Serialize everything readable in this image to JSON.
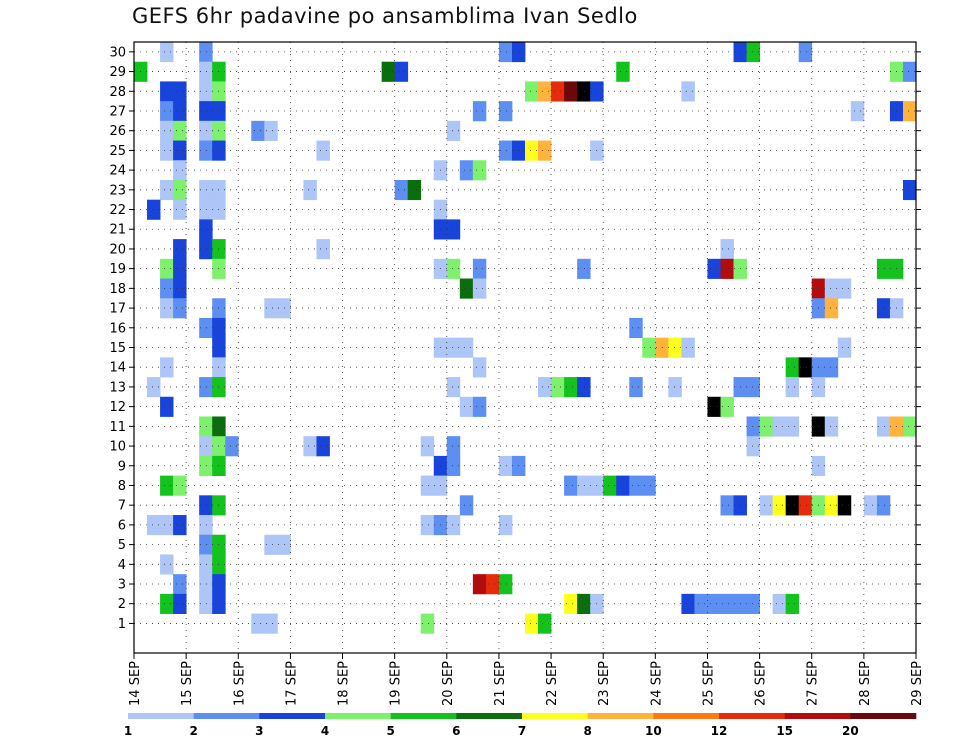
{
  "chart_data": {
    "type": "heatmap",
    "title": "GEFS 6hr padavine po ansamblima Ivan Sedlo",
    "xlabel": "",
    "ylabel": "",
    "x_tick_labels": [
      "14 SEP",
      "15 SEP",
      "16 SEP",
      "17 SEP",
      "18 SEP",
      "19 SEP",
      "20 SEP",
      "21 SEP",
      "22 SEP",
      "23 SEP",
      "24 SEP",
      "25 SEP",
      "26 SEP",
      "27 SEP",
      "28 SEP",
      "29 SEP"
    ],
    "y_tick_labels": [
      "1",
      "2",
      "3",
      "4",
      "5",
      "6",
      "7",
      "8",
      "9",
      "10",
      "11",
      "12",
      "13",
      "14",
      "15",
      "16",
      "17",
      "18",
      "19",
      "20",
      "21",
      "22",
      "23",
      "24",
      "25",
      "26",
      "27",
      "28",
      "29",
      "30"
    ],
    "n_time_steps": 60,
    "n_members": 31,
    "grid": true,
    "legend": {
      "position": "bottom",
      "levels": [
        "1",
        "2",
        "3",
        "4",
        "5",
        "6",
        "7",
        "8",
        "10",
        "12",
        "15",
        "20"
      ],
      "colors": [
        "#adc5f7",
        "#5d8ff2",
        "#1844dc",
        "#7df06c",
        "#14c21e",
        "#0b6e0e",
        "#ffff1e",
        "#ffb23c",
        "#ff7a10",
        "#e62a0c",
        "#b40c0c",
        "#6e0808"
      ]
    },
    "cells": [
      [
        3,
        30,
        1
      ],
      [
        6,
        30,
        2
      ],
      [
        29,
        30,
        2
      ],
      [
        30,
        30,
        3
      ],
      [
        47,
        30,
        3
      ],
      [
        48,
        30,
        5
      ],
      [
        52,
        30,
        2
      ],
      [
        1,
        29,
        5
      ],
      [
        6,
        29,
        1
      ],
      [
        7,
        29,
        5
      ],
      [
        20,
        29,
        6
      ],
      [
        21,
        29,
        3
      ],
      [
        38,
        29,
        5
      ],
      [
        59,
        29,
        4
      ],
      [
        60,
        29,
        2
      ],
      [
        3,
        28,
        3
      ],
      [
        4,
        28,
        3
      ],
      [
        6,
        28,
        1
      ],
      [
        7,
        28,
        4
      ],
      [
        31,
        28,
        4
      ],
      [
        32,
        28,
        8
      ],
      [
        33,
        28,
        10
      ],
      [
        34,
        28,
        12
      ],
      [
        35,
        28,
        13
      ],
      [
        36,
        28,
        3
      ],
      [
        43,
        28,
        1
      ],
      [
        3,
        27,
        2
      ],
      [
        4,
        27,
        3
      ],
      [
        6,
        27,
        3
      ],
      [
        7,
        27,
        3
      ],
      [
        27,
        27,
        2
      ],
      [
        29,
        27,
        2
      ],
      [
        56,
        27,
        1
      ],
      [
        59,
        27,
        3
      ],
      [
        60,
        27,
        8
      ],
      [
        3,
        26,
        1
      ],
      [
        4,
        26,
        4
      ],
      [
        6,
        26,
        1
      ],
      [
        7,
        26,
        4
      ],
      [
        10,
        26,
        2
      ],
      [
        11,
        26,
        1
      ],
      [
        25,
        26,
        1
      ],
      [
        3,
        25,
        1
      ],
      [
        4,
        25,
        3
      ],
      [
        6,
        25,
        2
      ],
      [
        7,
        25,
        3
      ],
      [
        15,
        25,
        1
      ],
      [
        29,
        25,
        2
      ],
      [
        30,
        25,
        3
      ],
      [
        31,
        25,
        7
      ],
      [
        32,
        25,
        8
      ],
      [
        36,
        25,
        1
      ],
      [
        4,
        24,
        1
      ],
      [
        24,
        24,
        1
      ],
      [
        26,
        24,
        2
      ],
      [
        27,
        24,
        4
      ],
      [
        3,
        23,
        1
      ],
      [
        4,
        23,
        4
      ],
      [
        6,
        23,
        1
      ],
      [
        7,
        23,
        1
      ],
      [
        14,
        23,
        1
      ],
      [
        21,
        23,
        2
      ],
      [
        22,
        23,
        6
      ],
      [
        60,
        23,
        3
      ],
      [
        2,
        22,
        3
      ],
      [
        4,
        22,
        1
      ],
      [
        6,
        22,
        1
      ],
      [
        7,
        22,
        1
      ],
      [
        24,
        22,
        1
      ],
      [
        6,
        21,
        3
      ],
      [
        24,
        21,
        3
      ],
      [
        25,
        21,
        3
      ],
      [
        4,
        20,
        3
      ],
      [
        6,
        20,
        3
      ],
      [
        7,
        20,
        5
      ],
      [
        15,
        20,
        1
      ],
      [
        46,
        20,
        1
      ],
      [
        3,
        19,
        4
      ],
      [
        4,
        19,
        3
      ],
      [
        7,
        19,
        4
      ],
      [
        24,
        19,
        1
      ],
      [
        25,
        19,
        4
      ],
      [
        27,
        19,
        2
      ],
      [
        35,
        19,
        2
      ],
      [
        45,
        19,
        3
      ],
      [
        46,
        19,
        11
      ],
      [
        47,
        19,
        4
      ],
      [
        58,
        19,
        5
      ],
      [
        59,
        19,
        5
      ],
      [
        3,
        18,
        2
      ],
      [
        4,
        18,
        3
      ],
      [
        26,
        18,
        6
      ],
      [
        27,
        18,
        1
      ],
      [
        53,
        18,
        11
      ],
      [
        54,
        18,
        1
      ],
      [
        55,
        18,
        1
      ],
      [
        3,
        17,
        1
      ],
      [
        4,
        17,
        2
      ],
      [
        7,
        17,
        2
      ],
      [
        11,
        17,
        1
      ],
      [
        12,
        17,
        1
      ],
      [
        53,
        17,
        2
      ],
      [
        54,
        17,
        8
      ],
      [
        58,
        17,
        3
      ],
      [
        59,
        17,
        1
      ],
      [
        6,
        16,
        2
      ],
      [
        7,
        16,
        3
      ],
      [
        39,
        16,
        2
      ],
      [
        7,
        15,
        3
      ],
      [
        24,
        15,
        1
      ],
      [
        25,
        15,
        1
      ],
      [
        26,
        15,
        1
      ],
      [
        40,
        15,
        4
      ],
      [
        41,
        15,
        8
      ],
      [
        42,
        15,
        7
      ],
      [
        43,
        15,
        1
      ],
      [
        55,
        15,
        1
      ],
      [
        3,
        14,
        1
      ],
      [
        7,
        14,
        1
      ],
      [
        27,
        14,
        1
      ],
      [
        51,
        14,
        5
      ],
      [
        52,
        14,
        13
      ],
      [
        53,
        14,
        2
      ],
      [
        54,
        14,
        2
      ],
      [
        2,
        13,
        1
      ],
      [
        6,
        13,
        2
      ],
      [
        7,
        13,
        5
      ],
      [
        25,
        13,
        1
      ],
      [
        32,
        13,
        1
      ],
      [
        33,
        13,
        4
      ],
      [
        34,
        13,
        5
      ],
      [
        35,
        13,
        3
      ],
      [
        39,
        13,
        2
      ],
      [
        42,
        13,
        1
      ],
      [
        47,
        13,
        2
      ],
      [
        48,
        13,
        2
      ],
      [
        51,
        13,
        1
      ],
      [
        53,
        13,
        1
      ],
      [
        3,
        12,
        3
      ],
      [
        26,
        12,
        1
      ],
      [
        27,
        12,
        2
      ],
      [
        45,
        12,
        14
      ],
      [
        46,
        12,
        4
      ],
      [
        6,
        11,
        4
      ],
      [
        7,
        11,
        6
      ],
      [
        48,
        11,
        2
      ],
      [
        49,
        11,
        4
      ],
      [
        50,
        11,
        1
      ],
      [
        51,
        11,
        1
      ],
      [
        53,
        11,
        13
      ],
      [
        54,
        11,
        1
      ],
      [
        58,
        11,
        1
      ],
      [
        59,
        11,
        8
      ],
      [
        60,
        11,
        4
      ],
      [
        6,
        10,
        1
      ],
      [
        7,
        10,
        4
      ],
      [
        8,
        10,
        2
      ],
      [
        14,
        10,
        1
      ],
      [
        15,
        10,
        3
      ],
      [
        23,
        10,
        1
      ],
      [
        25,
        10,
        2
      ],
      [
        48,
        10,
        1
      ],
      [
        6,
        9,
        4
      ],
      [
        7,
        9,
        5
      ],
      [
        24,
        9,
        3
      ],
      [
        25,
        9,
        2
      ],
      [
        29,
        9,
        1
      ],
      [
        30,
        9,
        2
      ],
      [
        53,
        9,
        1
      ],
      [
        3,
        8,
        5
      ],
      [
        4,
        8,
        4
      ],
      [
        23,
        8,
        1
      ],
      [
        24,
        8,
        1
      ],
      [
        34,
        8,
        2
      ],
      [
        35,
        8,
        1
      ],
      [
        36,
        8,
        1
      ],
      [
        37,
        8,
        5
      ],
      [
        38,
        8,
        3
      ],
      [
        39,
        8,
        2
      ],
      [
        40,
        8,
        2
      ],
      [
        6,
        7,
        3
      ],
      [
        7,
        7,
        5
      ],
      [
        26,
        7,
        2
      ],
      [
        46,
        7,
        2
      ],
      [
        47,
        7,
        3
      ],
      [
        49,
        7,
        1
      ],
      [
        50,
        7,
        7
      ],
      [
        51,
        7,
        13
      ],
      [
        52,
        7,
        10
      ],
      [
        53,
        7,
        4
      ],
      [
        54,
        7,
        7
      ],
      [
        55,
        7,
        13
      ],
      [
        57,
        7,
        1
      ],
      [
        58,
        7,
        2
      ],
      [
        2,
        6,
        1
      ],
      [
        3,
        6,
        1
      ],
      [
        4,
        6,
        3
      ],
      [
        6,
        6,
        1
      ],
      [
        23,
        6,
        1
      ],
      [
        24,
        6,
        2
      ],
      [
        25,
        6,
        1
      ],
      [
        29,
        6,
        1
      ],
      [
        6,
        5,
        2
      ],
      [
        7,
        5,
        5
      ],
      [
        11,
        5,
        1
      ],
      [
        12,
        5,
        1
      ],
      [
        3,
        4,
        1
      ],
      [
        6,
        4,
        1
      ],
      [
        7,
        4,
        5
      ],
      [
        4,
        3,
        2
      ],
      [
        6,
        3,
        1
      ],
      [
        7,
        3,
        3
      ],
      [
        27,
        3,
        11
      ],
      [
        28,
        3,
        10
      ],
      [
        29,
        3,
        5
      ],
      [
        3,
        2,
        5
      ],
      [
        4,
        2,
        3
      ],
      [
        6,
        2,
        1
      ],
      [
        7,
        2,
        3
      ],
      [
        34,
        2,
        7
      ],
      [
        35,
        2,
        6
      ],
      [
        36,
        2,
        1
      ],
      [
        43,
        2,
        3
      ],
      [
        44,
        2,
        2
      ],
      [
        45,
        2,
        2
      ],
      [
        46,
        2,
        2
      ],
      [
        47,
        2,
        2
      ],
      [
        48,
        2,
        2
      ],
      [
        50,
        2,
        1
      ],
      [
        51,
        2,
        5
      ],
      [
        10,
        1,
        1
      ],
      [
        11,
        1,
        1
      ],
      [
        23,
        1,
        4
      ],
      [
        31,
        1,
        7
      ],
      [
        32,
        1,
        5
      ]
    ]
  }
}
